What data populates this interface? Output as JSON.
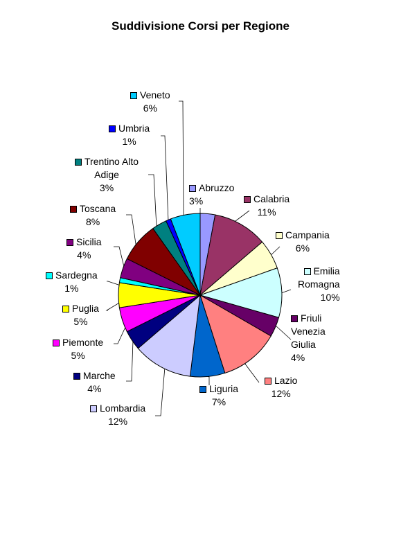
{
  "chart_data": {
    "type": "pie",
    "title": "Suddivisione Corsi per Regione",
    "slices": [
      {
        "name": "Abruzzo",
        "label_lines": [
          "Abruzzo"
        ],
        "value": 3,
        "pct_label": "3%",
        "color": "#9999ff"
      },
      {
        "name": "Calabria",
        "label_lines": [
          "Calabria"
        ],
        "value": 11,
        "pct_label": "11%",
        "color": "#993366"
      },
      {
        "name": "Campania",
        "label_lines": [
          "Campania"
        ],
        "value": 6,
        "pct_label": "6%",
        "color": "#ffffcc"
      },
      {
        "name": "Emilia Romagna",
        "label_lines": [
          "Emilia",
          "Romagna"
        ],
        "value": 10,
        "pct_label": "10%",
        "color": "#ccffff"
      },
      {
        "name": "Friuli Venezia Giulia",
        "label_lines": [
          "Friuli",
          "Venezia",
          "Giulia"
        ],
        "value": 4,
        "pct_label": "4%",
        "color": "#660066"
      },
      {
        "name": "Lazio",
        "label_lines": [
          "Lazio"
        ],
        "value": 12,
        "pct_label": "12%",
        "color": "#ff8080"
      },
      {
        "name": "Liguria",
        "label_lines": [
          "Liguria"
        ],
        "value": 7,
        "pct_label": "7%",
        "color": "#0066cc"
      },
      {
        "name": "Lombardia",
        "label_lines": [
          "Lombardia"
        ],
        "value": 12,
        "pct_label": "12%",
        "color": "#ccccff"
      },
      {
        "name": "Marche",
        "label_lines": [
          "Marche"
        ],
        "value": 4,
        "pct_label": "4%",
        "color": "#000080"
      },
      {
        "name": "Piemonte",
        "label_lines": [
          "Piemonte"
        ],
        "value": 5,
        "pct_label": "5%",
        "color": "#ff00ff"
      },
      {
        "name": "Puglia",
        "label_lines": [
          "Puglia"
        ],
        "value": 5,
        "pct_label": "5%",
        "color": "#ffff00"
      },
      {
        "name": "Sardegna",
        "label_lines": [
          "Sardegna"
        ],
        "value": 1,
        "pct_label": "1%",
        "color": "#00ffff"
      },
      {
        "name": "Sicilia",
        "label_lines": [
          "Sicilia"
        ],
        "value": 4,
        "pct_label": "4%",
        "color": "#800080"
      },
      {
        "name": "Toscana",
        "label_lines": [
          "Toscana"
        ],
        "value": 8,
        "pct_label": "8%",
        "color": "#800000"
      },
      {
        "name": "Trentino Alto Adige",
        "label_lines": [
          "Trentino Alto",
          "Adige"
        ],
        "value": 3,
        "pct_label": "3%",
        "color": "#008080"
      },
      {
        "name": "Umbria",
        "label_lines": [
          "Umbria"
        ],
        "value": 1,
        "pct_label": "1%",
        "color": "#0000ff"
      },
      {
        "name": "Veneto",
        "label_lines": [
          "Veneto"
        ],
        "value": 6,
        "pct_label": "6%",
        "color": "#00ccff"
      }
    ]
  }
}
